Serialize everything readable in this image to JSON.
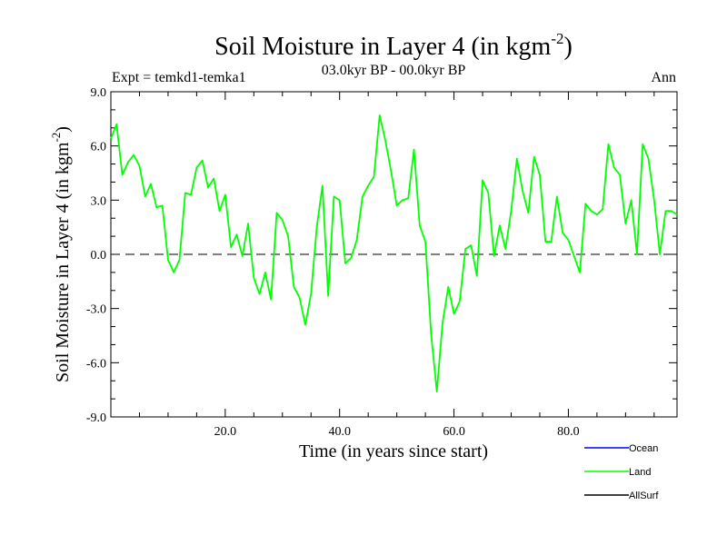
{
  "chart_data": {
    "type": "line",
    "title": "Soil Moisture in Layer 4 (in kgm",
    "title_sup": "-2",
    "title_close": ")",
    "subtitle_left": "Expt = temkd1-temka1",
    "subtitle_center": "03.0kyr BP - 00.0kyr BP",
    "subtitle_right": "Ann",
    "xlabel": "Time (in years since start)",
    "ylabel": "Soil Moisture in Layer 4 (in kgm",
    "ylabel_sup": "-2",
    "ylabel_close": ")",
    "xlim": [
      0,
      99
    ],
    "ylim": [
      -9,
      9
    ],
    "xticks": [
      20,
      40,
      60,
      80
    ],
    "xtick_labels": [
      "20.0",
      "40.0",
      "60.0",
      "80.0"
    ],
    "yticks": [
      9,
      6,
      3,
      0,
      -3,
      -6,
      -9
    ],
    "ytick_labels": [
      "9.0",
      "6.0",
      "3.0",
      "0.0",
      "-3.0",
      "-6.0",
      "-9.0"
    ],
    "reference_line": 0,
    "series": [
      {
        "name": "Land",
        "color": "#00ff00",
        "x": [
          0,
          1,
          2,
          3,
          4,
          5,
          6,
          7,
          8,
          9,
          10,
          11,
          12,
          13,
          14,
          15,
          16,
          17,
          18,
          19,
          20,
          21,
          22,
          23,
          24,
          25,
          26,
          27,
          28,
          29,
          30,
          31,
          32,
          33,
          34,
          35,
          36,
          37,
          38,
          39,
          40,
          41,
          42,
          43,
          44,
          45,
          46,
          47,
          48,
          49,
          50,
          51,
          52,
          53,
          54,
          55,
          56,
          57,
          58,
          59,
          60,
          61,
          62,
          63,
          64,
          65,
          66,
          67,
          68,
          69,
          70,
          71,
          72,
          73,
          74,
          75,
          76,
          77,
          78,
          79,
          80,
          81,
          82,
          83,
          84,
          85,
          86,
          87,
          88,
          89,
          90,
          91,
          92,
          93,
          94,
          95,
          96,
          97,
          98,
          99
        ],
        "values": [
          6.4,
          7.2,
          4.4,
          5.1,
          5.5,
          4.9,
          3.2,
          3.9,
          2.6,
          2.7,
          -0.3,
          -1.0,
          -0.3,
          3.4,
          3.3,
          4.8,
          5.2,
          3.7,
          4.2,
          2.4,
          3.3,
          0.4,
          1.1,
          -0.1,
          1.7,
          -1.3,
          -2.2,
          -1.0,
          -2.5,
          2.3,
          1.9,
          1.0,
          -1.8,
          -2.4,
          -3.9,
          -2.2,
          1.5,
          3.8,
          -2.3,
          3.2,
          3.0,
          -0.5,
          -0.2,
          0.8,
          3.2,
          3.8,
          4.3,
          7.7,
          6.3,
          4.6,
          2.7,
          3.0,
          3.1,
          5.8,
          1.6,
          0.7,
          -4.4,
          -7.6,
          -3.8,
          -1.8,
          -3.3,
          -2.6,
          0.3,
          0.5,
          -1.2,
          4.1,
          3.4,
          -0.1,
          1.6,
          0.3,
          2.4,
          5.3,
          3.5,
          2.3,
          5.4,
          4.4,
          0.7,
          0.7,
          3.2,
          1.2,
          0.8,
          -0.1,
          -1.0,
          2.8,
          2.4,
          2.2,
          2.5,
          6.1,
          4.8,
          4.4,
          1.7,
          3.0,
          0.0,
          6.1,
          5.3,
          3.0,
          0.0,
          2.4,
          2.4,
          2.2
        ]
      }
    ],
    "legend": [
      {
        "label": "Ocean",
        "color": "#0000ff"
      },
      {
        "label": "Land",
        "color": "#00ff00"
      },
      {
        "label": "AllSurf",
        "color": "#000000"
      }
    ],
    "legend_position": "bottom-right"
  }
}
